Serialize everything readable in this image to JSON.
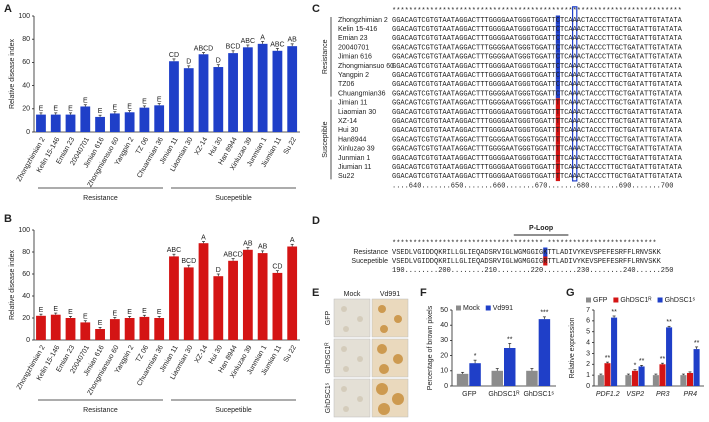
{
  "chart_data": [
    {
      "type": "bar",
      "panel": "A",
      "ylabel": "Relative disease index",
      "color": "#1f3fc8",
      "categories": [
        "Zhongzhimian 2",
        "Kelin 15-146",
        "Emian 23",
        "20040701",
        "Jimian 616",
        "Zhongmiansuo 60",
        "Yangpin 2",
        "TZ 06",
        "Chuanmian 36",
        "Jimian 11",
        "Liaomian 30",
        "XZ-14",
        "Hui 30",
        "Han 8944",
        "Xinluzao 39",
        "Junmian 1",
        "Jiumian 11",
        "Su 22"
      ],
      "values": [
        15,
        15,
        15,
        22,
        13,
        16,
        17,
        21,
        23,
        61,
        55,
        67,
        56,
        68,
        73,
        76,
        70,
        74
      ],
      "errors": [
        1.5,
        1.5,
        1.5,
        1.5,
        1.5,
        1.5,
        1.5,
        1.5,
        1.5,
        2,
        2,
        1.5,
        2,
        2,
        2,
        2,
        2,
        2
      ],
      "annotations": [
        "E",
        "E",
        "E",
        "E",
        "E",
        "E",
        "E",
        "E",
        "E",
        "CD",
        "D",
        "ABCD",
        "D",
        "BCD",
        "ABC",
        "A",
        "ABC",
        "AB"
      ],
      "groups": [
        "Resistance",
        "Sucepetible"
      ],
      "ylim": [
        0,
        100
      ],
      "yticks": [
        0,
        20,
        40,
        60,
        80,
        100
      ]
    },
    {
      "type": "bar",
      "panel": "B",
      "ylabel": "Relative disease index",
      "color": "#d41414",
      "categories": [
        "Zhongzhimian 2",
        "Kelin 15-146",
        "Emian 23",
        "20040701",
        "Jimian 616",
        "Zhongmiansuo 60",
        "Yangpin 2",
        "TZ 06",
        "Chuanmian 36",
        "Jimian 11",
        "Liaomian 30",
        "XZ-14",
        "Hui 30",
        "Han 8944",
        "Xinluzao 39",
        "Junmian 1",
        "Jiumian 11",
        "Su 22"
      ],
      "values": [
        22,
        23,
        20,
        16,
        10,
        19,
        20,
        21,
        20,
        76,
        66,
        88,
        58,
        72,
        82,
        79,
        61,
        85
      ],
      "errors": [
        1.5,
        1.5,
        1.5,
        1.5,
        1.5,
        1.5,
        1.5,
        1.5,
        1.5,
        2,
        2,
        1.5,
        2,
        2,
        2,
        2,
        2,
        2
      ],
      "annotations": [
        "E",
        "E",
        "E",
        "E",
        "E",
        "E",
        "E",
        "E",
        "E",
        "ABC",
        "BCD",
        "A",
        "D",
        "ABCD",
        "AB",
        "AB",
        "CD",
        "A"
      ],
      "groups": [
        "Resistance",
        "Sucepetible"
      ],
      "ylim": [
        0,
        100
      ],
      "yticks": [
        0,
        20,
        40,
        60,
        80,
        100
      ]
    },
    {
      "type": "bar",
      "panel": "F",
      "ylabel": "Percentage of brown pixels",
      "categories": [
        "GFP",
        "GhDSC1ᴿ",
        "GhDSC1ˢ"
      ],
      "series": [
        {
          "name": "Mock",
          "color": "#8c8c8c",
          "values": [
            8,
            10,
            10
          ],
          "errors": [
            1,
            1.5,
            1.5
          ],
          "annotations": [
            null,
            null,
            null
          ]
        },
        {
          "name": "Vd991",
          "color": "#1f3fc8",
          "values": [
            15,
            25,
            44
          ],
          "errors": [
            2,
            3,
            1.5
          ],
          "annotations": [
            "*",
            "**",
            "***"
          ]
        }
      ],
      "ylim": [
        0,
        50
      ],
      "yticks": [
        0,
        10,
        20,
        30,
        40,
        50
      ]
    },
    {
      "type": "bar",
      "panel": "G",
      "ylabel": "Relative expression",
      "categories": [
        "PDF1.2",
        "VSP2",
        "PR3",
        "PR4"
      ],
      "series": [
        {
          "name": "GFP",
          "color": "#8c8c8c",
          "values": [
            1,
            1,
            1,
            1
          ],
          "errors": [
            0.1,
            0.1,
            0.1,
            0.1
          ],
          "annotations": [
            null,
            null,
            null,
            null
          ]
        },
        {
          "name": "GhDSC1ᴿ",
          "color": "#d41414",
          "values": [
            2.1,
            1.4,
            2,
            1.2
          ],
          "errors": [
            0.1,
            0.1,
            0.1,
            0.1
          ],
          "annotations": [
            "**",
            "*",
            "**",
            null
          ]
        },
        {
          "name": "GhDSC1ˢ",
          "color": "#1f3fc8",
          "values": [
            6.3,
            1.8,
            5.4,
            3.4
          ],
          "errors": [
            0.15,
            0.1,
            0.1,
            0.2
          ],
          "annotations": [
            "**",
            "**",
            "**",
            "**"
          ]
        }
      ],
      "ylim": [
        0,
        7
      ],
      "yticks": [
        0,
        1,
        2,
        3,
        4,
        5,
        6,
        7
      ]
    }
  ],
  "alignment": {
    "panel": "C",
    "consensus": "*********************************************************************",
    "groups": [
      "Resistance",
      "Susceptible"
    ],
    "rows": [
      {
        "name": "Zhongzhimian 2",
        "sequence": "GGACAGTCGTGTAATAGGACTTTGGGGAATGGGTGGATTCTCAAACTACCCTTGCTGATATTGTATATA"
      },
      {
        "name": "Kelin 15-416",
        "sequence": "GGACAGTCGTGTAATAGGACTTTGGGGAATGGGTGGATTCTCAAACTACCCTTGCTGATATTGTATATA"
      },
      {
        "name": "Emian 23",
        "sequence": "GGACAGTCGTGTAATAGGACTTTGGGGAATGGGTGGATTCTCAAACTACCCTTGCTGATATTGTATATA"
      },
      {
        "name": "20040701",
        "sequence": "GGACAGTCGTGTAATAGGACTTTGGGGAATGGGTGGATTCTCAAACTACCCTTGCTGATATTGTATATA"
      },
      {
        "name": "Jimian 616",
        "sequence": "GGACAGTCGTGTAATAGGACTTTGGGGAATGGGTGGATTCTCAAACTACCCTTGCTGATATTGTATATA"
      },
      {
        "name": "Zhongmiansuo 60",
        "sequence": "GGACAGTCGTGTAATAGGACTTTGGGGAATGGGTGGATTCTCAAACTACCCTTGCTGATATTGTATATA"
      },
      {
        "name": "Yangpin 2",
        "sequence": "GGACAGTCGTGTAATAGGACTTTGGGGAATGGGTGGATTCTCAAACTACCCTTGCTGATATTGTATATA"
      },
      {
        "name": "TZ06",
        "sequence": "GGACAGTCGTGTAATAGGACTTTGGGGAATGGGTGGATTCTCAAACTACCCTTGCTGATATTGTATATA"
      },
      {
        "name": "Chuangmian36",
        "sequence": "GGACAGTCGTGTAATAGGACTTTGGGGAATGGGTGGATTCTCAAACTACCCTTGCTGATATTGTATATA"
      },
      {
        "name": "Jimian 11",
        "sequence": "GGACAGTCGTGTAATAGGACTTTGGGGAATGGGTGGATTTTCAAACTACCCTTGCTGATATTGTATATA"
      },
      {
        "name": "Liaomian 30",
        "sequence": "GGACAGTCGTGTAATAGGACTTTGGGGAATGGGTGGATTTTCAAACTACCCTTGCTGATATTGTATATA"
      },
      {
        "name": "XZ-14",
        "sequence": "GGACAGTCGTGTAATAGGACTTTGGGGAATGGGTGGATTTTCAAACTACCCTTGCTGATATTGTATATA"
      },
      {
        "name": "Hui 30",
        "sequence": "GGACAGTCGTGTAATAGGACTTTGGGGAATGGGTGGATTTTCAAACTACCCTTGCTGATATTGTATATA"
      },
      {
        "name": "Han8944",
        "sequence": "GGACAGTCGTGTAATAGGACTTTGGGGAATGGGTGGATTTTCAAACTACCCTTGCTGATATTGTATATA"
      },
      {
        "name": "Xinluzao 39",
        "sequence": "GGACAGTCGTGTAATAGGACTTTGGGGAATGGGTGGATTTTCAAACTACCCTTGCTGATATTGTATATA"
      },
      {
        "name": "Junmian 1",
        "sequence": "GGACAGTCGTGTAATAGGACTTTGGGGAATGGGTGGATTTTCAAACTACCCTTGCTGATATTGTATATA"
      },
      {
        "name": "Jiumian 11",
        "sequence": "GGACAGTCGTGTAATAGGACTTTGGGGAATGGGTGGATTTTCAAACTACCCTTGCTGATATTGTATATA"
      },
      {
        "name": "Su22",
        "sequence": "GGACAGTCGTGTAATAGGACTTTGGGGAATGGGTGGATTTTCAAACTACCCTTGCTGATATTGTATATA"
      }
    ],
    "ruler": "....640.......650.......660.......670.......680.......690.......700"
  },
  "motif": {
    "panel": "D",
    "label": "P-Loop",
    "consensus": "************************************ **************************",
    "rows": [
      {
        "name": "Resistance",
        "sequence": "VSEDLVGIDDQKRILLGLIEQADSRVIGLWGMGGIGKTTLADIVYKEVSPEFESRFFLRNVSKK"
      },
      {
        "name": "Sucepetible",
        "sequence": "VSEDLVGIDDQKRILLGLIEQADSRVIGLWGMGGIGRTTLADIVYKEVSPEFESRFFLRNVSKK"
      }
    ],
    "ruler": "190........200........210........220........230........240......250"
  },
  "images": {
    "panel": "E",
    "columns": [
      "Mock",
      "Vd991"
    ],
    "rows": [
      "GFP",
      "GhDSC1ᴿ",
      "GhDSC1ˢ"
    ]
  }
}
